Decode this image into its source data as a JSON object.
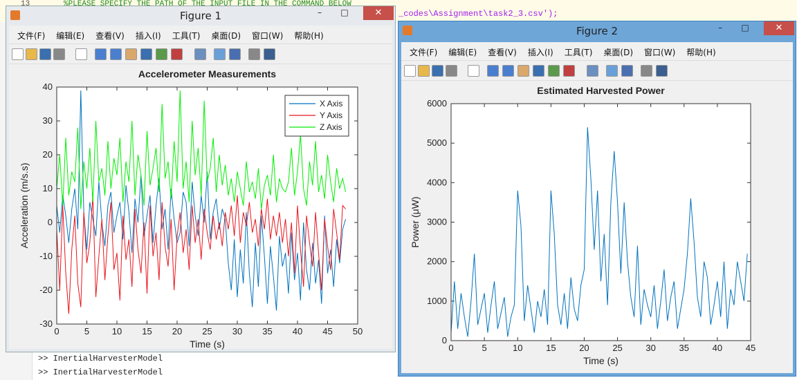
{
  "editor": {
    "line_number": "13",
    "comment": "%PLEASE SPECIFY THE PATH OF THE INPUT FILE IN THE COMMAND BELOW",
    "code": "_codes\\Assignment\\task2_3.csv');"
  },
  "command_window": {
    "lines": [
      ">> InertialHarvesterModel",
      ">> InertialHarvesterModel"
    ]
  },
  "figures": [
    {
      "title": "Figure 1",
      "menu": [
        "文件(F)",
        "编辑(E)",
        "查看(V)",
        "插入(I)",
        "工具(T)",
        "桌面(D)",
        "窗口(W)",
        "帮助(H)"
      ]
    },
    {
      "title": "Figure 2",
      "menu": [
        "文件(F)",
        "编辑(E)",
        "查看(V)",
        "插入(I)",
        "工具(T)",
        "桌面(D)",
        "窗口(W)",
        "帮助(H)"
      ]
    }
  ],
  "chart_data": [
    {
      "type": "line",
      "title": "Accelerometer Measurements",
      "x_label": "Time (s)",
      "y_label": "Acceleration (m/s.s)",
      "x": [
        0,
        0.5,
        1,
        1.5,
        2,
        2.5,
        3,
        3.5,
        4,
        4.5,
        5,
        5.5,
        6,
        6.5,
        7,
        7.5,
        8,
        8.5,
        9,
        9.5,
        10,
        10.5,
        11,
        11.5,
        12,
        12.5,
        13,
        13.5,
        14,
        14.5,
        15,
        15.5,
        16,
        16.5,
        17,
        17.5,
        18,
        18.5,
        19,
        19.5,
        20,
        20.5,
        21,
        21.5,
        22,
        22.5,
        23,
        23.5,
        24,
        24.5,
        25,
        25.5,
        26,
        26.5,
        27,
        27.5,
        28,
        28.5,
        29,
        29.5,
        30,
        30.5,
        31,
        31.5,
        32,
        32.5,
        33,
        33.5,
        34,
        34.5,
        35,
        35.5,
        36,
        36.5,
        37,
        37.5,
        38,
        38.5,
        39,
        39.5,
        40,
        40.5,
        41,
        41.5,
        42,
        42.5,
        43,
        43.5,
        44,
        44.5,
        45,
        45.5,
        46,
        46.5,
        47,
        47.5,
        48
      ],
      "series": [
        {
          "name": "X Axis",
          "color": "#0072bd",
          "values": [
            5,
            -3,
            8,
            2,
            -6,
            4,
            10,
            -2,
            39,
            3,
            -8,
            6,
            1,
            -4,
            12,
            0,
            -7,
            5,
            9,
            -3,
            2,
            6,
            -5,
            11,
            3,
            -9,
            7,
            0,
            14,
            -4,
            2,
            8,
            -6,
            5,
            13,
            -2,
            4,
            -8,
            10,
            1,
            -6,
            -3,
            9,
            6,
            -7,
            12,
            2,
            -4,
            8,
            0,
            15,
            -5,
            3,
            7,
            -2,
            4,
            1,
            -12,
            -20,
            -5,
            -22,
            -8,
            -18,
            3,
            -15,
            -25,
            -6,
            -19,
            2,
            -10,
            -24,
            -7,
            -16,
            -26,
            -4,
            -13,
            -9,
            -21,
            -3,
            -17,
            -9,
            -23,
            0,
            -14,
            -20,
            -6,
            -18,
            -11,
            -24,
            2,
            -15,
            -8,
            -19,
            -5,
            -12,
            -2,
            1
          ]
        },
        {
          "name": "Y Axis",
          "color": "#e8141c",
          "values": [
            -2,
            -20,
            5,
            -15,
            -27,
            -8,
            2,
            -18,
            -25,
            3,
            -12,
            -6,
            8,
            -22,
            -10,
            1,
            -17,
            -4,
            6,
            -14,
            -9,
            -23,
            2,
            -11,
            -5,
            -19,
            4,
            -8,
            -15,
            0,
            -21,
            5,
            -10,
            -3,
            -17,
            6,
            -7,
            -13,
            1,
            -20,
            -4,
            3,
            -9,
            -2,
            -14,
            5,
            -6,
            1,
            -11,
            4,
            -3,
            -8,
            2,
            -5,
            0,
            -7,
            3,
            -2,
            5,
            -4,
            8,
            -6,
            3,
            -1,
            6,
            -3,
            1,
            -7,
            4,
            -2,
            7,
            -5,
            2,
            -4,
            3,
            -6,
            1,
            -10,
            0,
            -15,
            5,
            -8,
            -19,
            2,
            -6,
            -13,
            3,
            -9,
            -20,
            1,
            -7,
            -14,
            4,
            -3,
            -11,
            5,
            4
          ]
        },
        {
          "name": "Z Axis",
          "color": "#00ee00",
          "values": [
            10,
            20,
            5,
            25,
            8,
            15,
            12,
            28,
            4,
            18,
            10,
            22,
            6,
            30,
            12,
            16,
            8,
            24,
            10,
            19,
            14,
            25,
            6,
            18,
            12,
            30,
            8,
            20,
            14,
            5,
            27,
            11,
            16,
            22,
            9,
            35,
            13,
            18,
            7,
            24,
            12,
            39,
            10,
            18,
            6,
            30,
            14,
            22,
            8,
            36,
            12,
            16,
            25,
            9,
            20,
            11,
            17,
            8,
            13,
            6,
            15,
            10,
            5,
            18,
            9,
            12,
            7,
            16,
            4,
            11,
            14,
            8,
            20,
            6,
            13,
            10,
            9,
            12,
            22,
            8,
            15,
            26,
            10,
            5,
            18,
            11,
            24,
            9,
            14,
            7,
            20,
            12,
            6,
            16,
            10,
            13,
            9
          ]
        }
      ],
      "xlim": [
        0,
        50
      ],
      "xticks": [
        0,
        5,
        10,
        15,
        20,
        25,
        30,
        35,
        40,
        45,
        50
      ],
      "ylim": [
        -30,
        40
      ],
      "yticks": [
        -30,
        -20,
        -10,
        0,
        10,
        20,
        30,
        40
      ],
      "grid": false,
      "legend": "upper-right"
    },
    {
      "type": "line",
      "title": "Estimated Harvested Power",
      "x_label": "Time (s)",
      "y_label": "Power (μW)",
      "x": [
        0,
        0.5,
        1,
        1.5,
        2,
        2.5,
        3,
        3.5,
        4,
        4.5,
        5,
        5.5,
        6,
        6.5,
        7,
        7.5,
        8,
        8.5,
        9,
        9.5,
        10,
        10.5,
        11,
        11.5,
        12,
        12.5,
        13,
        13.5,
        14,
        14.5,
        15,
        15.5,
        16,
        16.5,
        17,
        17.5,
        18,
        18.5,
        19,
        19.5,
        20,
        20.5,
        21,
        21.5,
        22,
        22.5,
        23,
        23.5,
        24,
        24.5,
        25,
        25.5,
        26,
        26.5,
        27,
        27.5,
        28,
        28.5,
        29,
        29.5,
        30,
        30.5,
        31,
        31.5,
        32,
        32.5,
        33,
        33.5,
        34,
        34.5,
        35,
        35.5,
        36,
        36.5,
        37,
        37.5,
        38,
        38.5,
        39,
        39.5,
        40,
        40.5,
        41,
        41.5,
        42,
        42.5,
        43,
        43.5,
        44,
        44.5
      ],
      "series": [
        {
          "name": "Power",
          "color": "#0072bd",
          "values": [
            200,
            1500,
            300,
            1200,
            600,
            100,
            1000,
            2200,
            400,
            800,
            1200,
            200,
            900,
            1500,
            300,
            700,
            1100,
            100,
            600,
            900,
            3800,
            2900,
            500,
            1400,
            800,
            200,
            1000,
            600,
            1300,
            400,
            3800,
            2700,
            900,
            400,
            1200,
            300,
            1600,
            800,
            500,
            1400,
            1800,
            5400,
            4100,
            2300,
            3800,
            1500,
            2700,
            900,
            3500,
            4800,
            3500,
            1700,
            3500,
            2000,
            1100,
            600,
            2400,
            400,
            1300,
            900,
            600,
            1400,
            300,
            1000,
            1800,
            500,
            1100,
            1500,
            300,
            800,
            1300,
            2200,
            3600,
            2500,
            1100,
            600,
            2000,
            1600,
            400,
            900,
            1500,
            600,
            2000,
            300,
            1300,
            900,
            2000,
            1500,
            1000,
            2200
          ]
        }
      ],
      "xlim": [
        0,
        45
      ],
      "xticks": [
        0,
        5,
        10,
        15,
        20,
        25,
        30,
        35,
        40,
        45
      ],
      "ylim": [
        0,
        6000
      ],
      "yticks": [
        0,
        1000,
        2000,
        3000,
        4000,
        5000,
        6000
      ],
      "grid": false
    }
  ]
}
